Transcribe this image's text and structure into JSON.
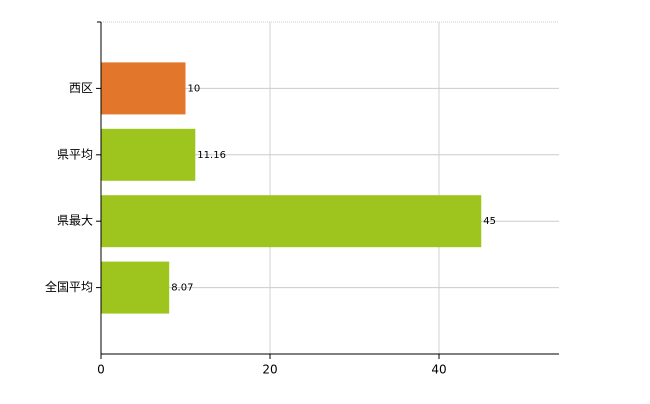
{
  "chart_data": {
    "type": "bar",
    "orientation": "horizontal",
    "categories": [
      "西区",
      "県平均",
      "県最大",
      "全国平均"
    ],
    "values": [
      10,
      11.16,
      45,
      8.07
    ],
    "colors": [
      "#e2762a",
      "#9ec51e",
      "#9ec51e",
      "#9ec51e"
    ],
    "xlim": [
      0,
      54.2
    ],
    "xticks": [
      0,
      20,
      40
    ],
    "grid": true
  }
}
